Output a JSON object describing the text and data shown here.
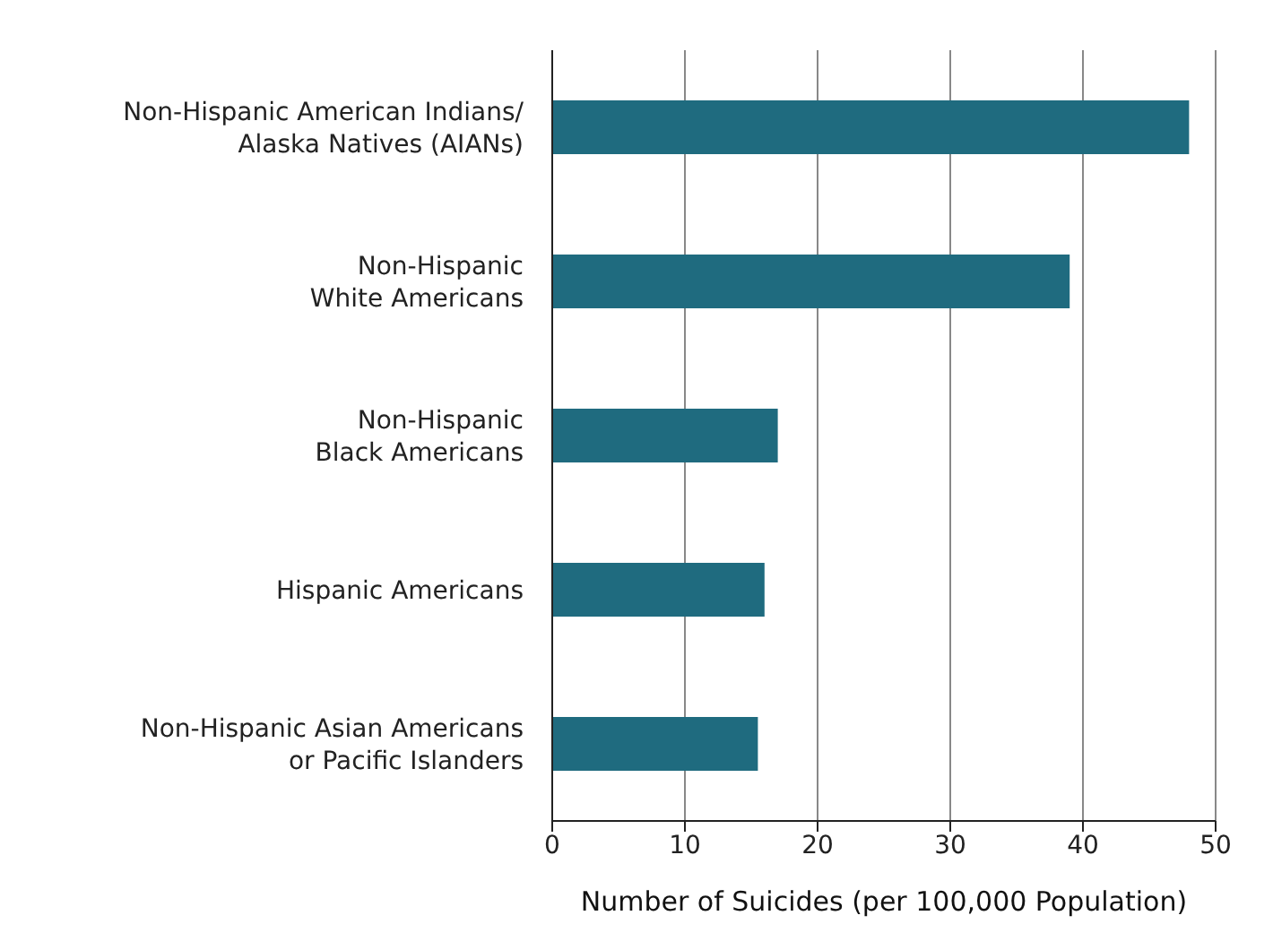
{
  "chart_data": {
    "type": "bar",
    "orientation": "horizontal",
    "xlabel": "Number of Suicides (per 100,000 Population)",
    "categories": [
      "Non-Hispanic American Indians/\nAlaska Natives (AIANs)",
      "Non-Hispanic\nWhite Americans",
      "Non-Hispanic\nBlack Americans",
      "Hispanic Americans",
      "Non-Hispanic Asian Americans\nor Pacific Islanders"
    ],
    "values": [
      48,
      39,
      17,
      16,
      15.5
    ],
    "color": "#1f6b7f",
    "xlim": [
      0,
      50
    ],
    "xticks": [
      0,
      10,
      20,
      30,
      40,
      50
    ],
    "grid": "x"
  }
}
